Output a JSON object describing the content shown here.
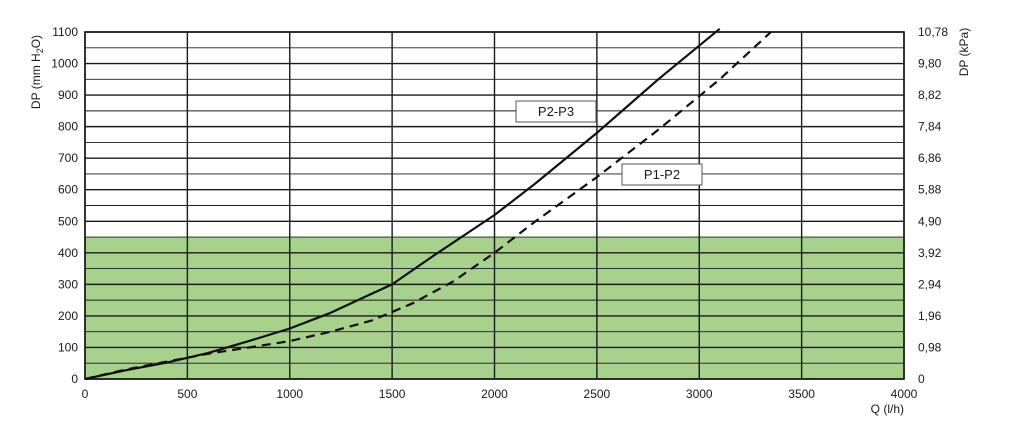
{
  "chart_data": {
    "type": "line",
    "xlabel": "Q (l/h)",
    "ylabel": "DP (mm H2O)",
    "ylabel_parts": {
      "main": "DP (mm H",
      "sub": "2",
      "tail": "O)"
    },
    "y2label": "DP (kPa)",
    "xlim": [
      0,
      4000
    ],
    "ylim": [
      0,
      1100
    ],
    "x_ticks": [
      "0",
      "500",
      "1000",
      "1500",
      "2000",
      "2500",
      "3000",
      "3500",
      "4000"
    ],
    "y_ticks": [
      "0",
      "100",
      "200",
      "300",
      "400",
      "500",
      "600",
      "700",
      "800",
      "900",
      "1000",
      "1100"
    ],
    "y2_ticks": [
      "0",
      "0,98",
      "1,96",
      "2,94",
      "3,92",
      "4,90",
      "5,88",
      "6,86",
      "7,84",
      "8,82",
      "9,80",
      "10,78"
    ],
    "grid": true,
    "shaded_region": {
      "y_from": 0,
      "y_to": 450,
      "color": "#a9d18e"
    },
    "series": [
      {
        "name": "P2-P3",
        "style": "solid",
        "x": [
          0,
          200,
          400,
          600,
          800,
          1000,
          1200,
          1400,
          1500,
          1700,
          2000,
          2200,
          2500,
          2800,
          3100
        ],
        "y": [
          0,
          28,
          52,
          82,
          120,
          160,
          210,
          270,
          300,
          390,
          520,
          620,
          780,
          950,
          1110
        ]
      },
      {
        "name": "P1-P2",
        "style": "dashed",
        "x": [
          0,
          200,
          400,
          600,
          800,
          1000,
          1200,
          1400,
          1600,
          1800,
          2000,
          2200,
          2500,
          2800,
          3100,
          3350
        ],
        "y": [
          0,
          30,
          55,
          80,
          100,
          120,
          150,
          185,
          240,
          310,
          400,
          500,
          640,
          790,
          950,
          1100
        ]
      }
    ]
  }
}
